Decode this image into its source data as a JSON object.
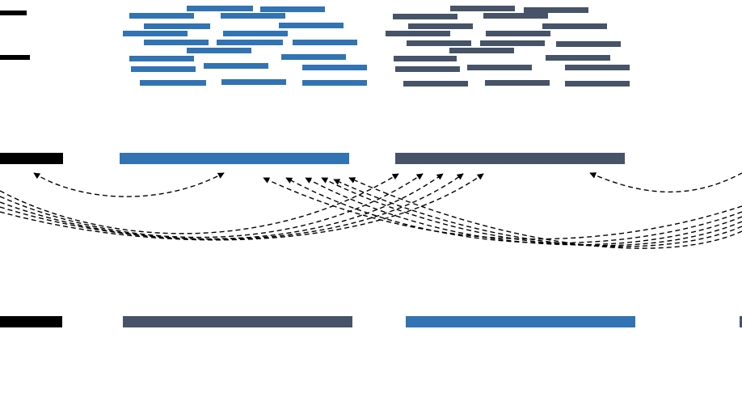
{
  "colors": {
    "blue": "#3173b3",
    "slate": "#465368",
    "black": "#000000",
    "arrow": "#000000",
    "background": "#ffffff"
  },
  "scatter_groups": [
    {
      "id": "reads-blue",
      "color": "blue",
      "count": 21
    },
    {
      "id": "reads-slate",
      "color": "slate",
      "count": 21
    }
  ],
  "rows": [
    {
      "id": "reference",
      "blocks": [
        "black",
        "blue",
        "slate"
      ]
    },
    {
      "id": "assembly",
      "blocks": [
        "black",
        "slate",
        "blue"
      ]
    }
  ],
  "arrows": {
    "style": "dashed",
    "count": 13
  }
}
